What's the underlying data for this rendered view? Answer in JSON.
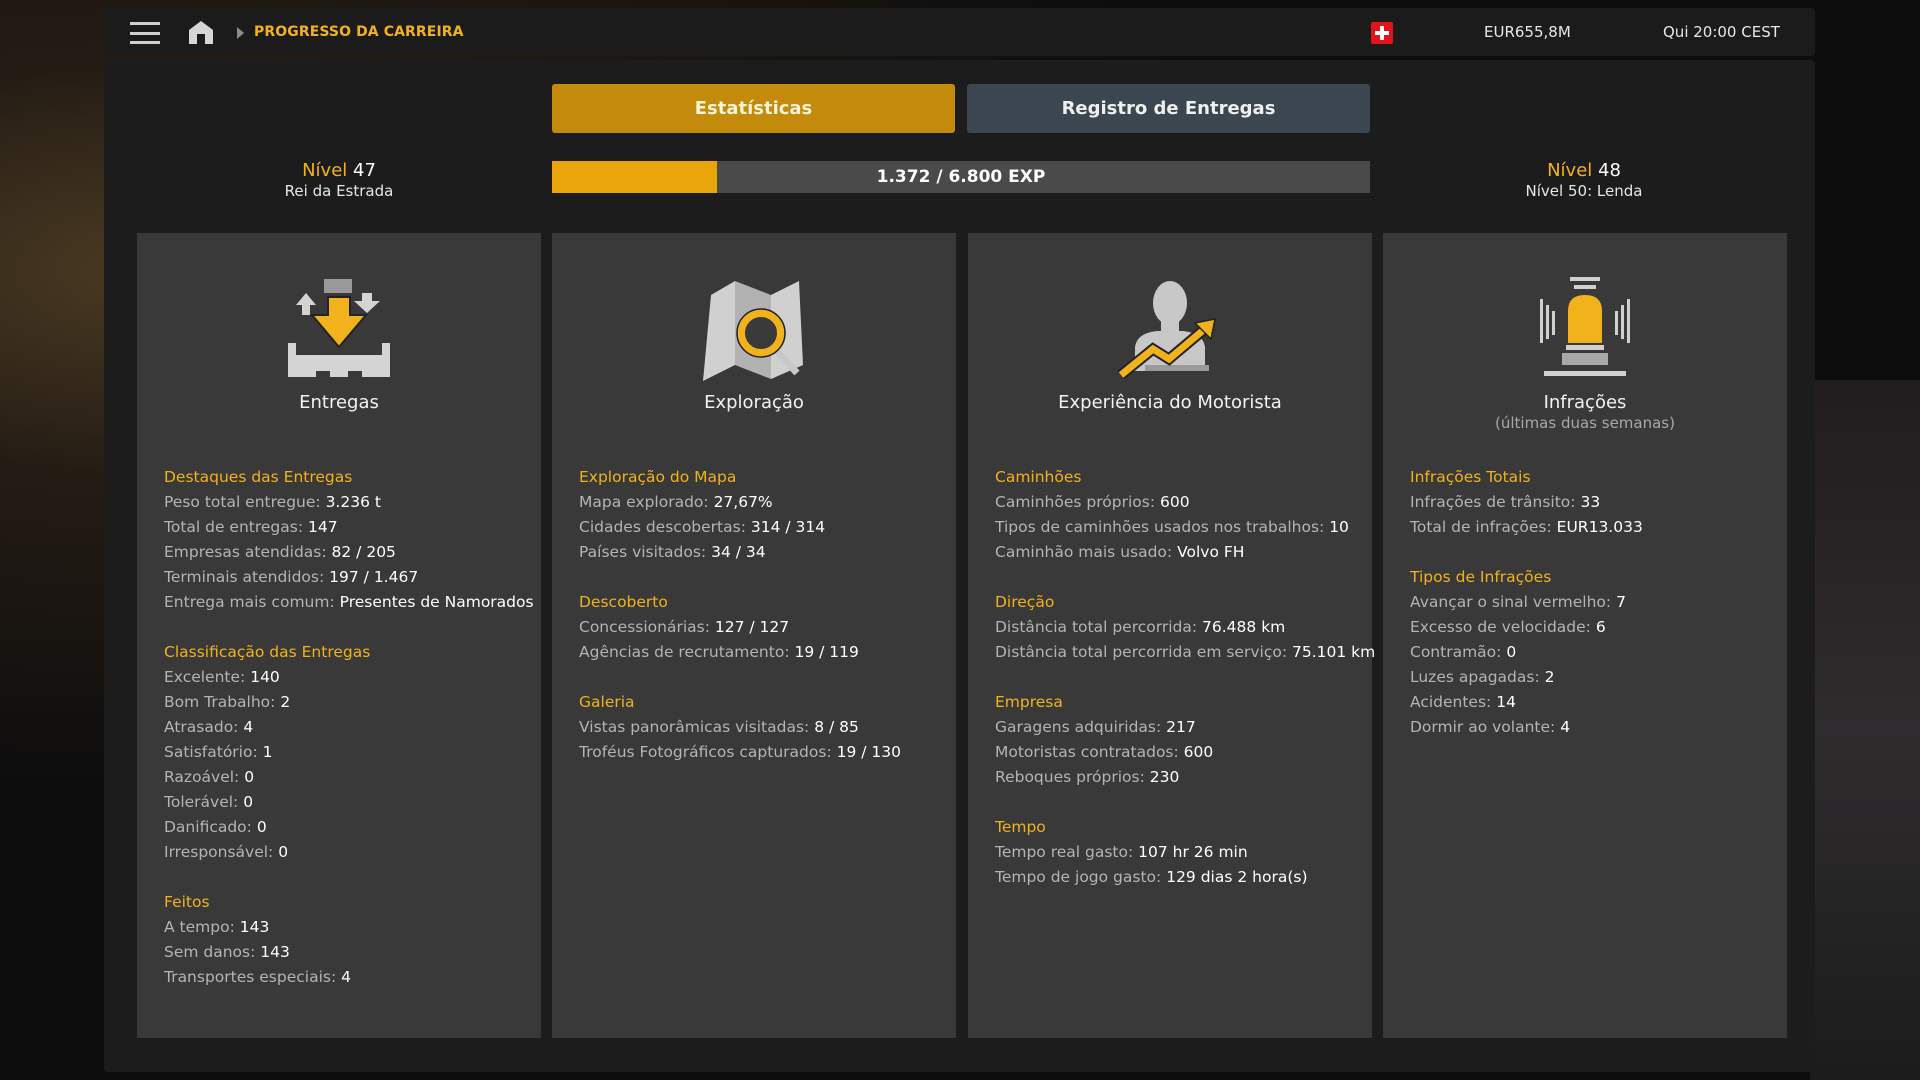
{
  "colors": {
    "accent": "#f2b21c",
    "tab_active": "#c48a0c",
    "tab_inactive": "#3b4650",
    "progress_fill": "#e9a50b",
    "card_bg": "#393939"
  },
  "topbar": {
    "menu_icon": "hamburger-menu-icon",
    "home_icon": "home-icon",
    "breadcrumb": "PROGRESSO DA CARREIRA",
    "flag_icon": "swiss-flag-icon",
    "money": "EUR655,8M",
    "clock": "Qui 20:00 CEST"
  },
  "tabs": [
    {
      "label": "Estatísticas",
      "active": true
    },
    {
      "label": "Registro de Entregas",
      "active": false
    }
  ],
  "level_current": {
    "label": "Nível",
    "number": "47",
    "rank": "Rei da Estrada"
  },
  "level_next": {
    "label": "Nível",
    "number": "48",
    "rank": "Nível 50: Lenda"
  },
  "progress": {
    "text": "1.372 / 6.800 EXP",
    "current": 1372,
    "max": 6800
  },
  "cards": [
    {
      "title": "Entregas",
      "icon": "delivery-icon",
      "sections": [
        {
          "heading": "Destaques das Entregas",
          "rows": [
            {
              "label": "Peso total entregue:",
              "value": "3.236 t"
            },
            {
              "label": "Total de entregas:",
              "value": "147"
            },
            {
              "label": "Empresas atendidas:",
              "value": "82 / 205"
            },
            {
              "label": "Terminais atendidos:",
              "value": "197 / 1.467"
            },
            {
              "label": "Entrega mais comum:",
              "value": "Presentes de Namorados"
            }
          ]
        },
        {
          "heading": "Classificação das Entregas",
          "rows": [
            {
              "label": "Excelente:",
              "value": "140"
            },
            {
              "label": "Bom Trabalho:",
              "value": "2"
            },
            {
              "label": "Atrasado:",
              "value": "4"
            },
            {
              "label": "Satisfatório:",
              "value": "1"
            },
            {
              "label": "Razoável:",
              "value": "0"
            },
            {
              "label": "Tolerável:",
              "value": "0"
            },
            {
              "label": "Danificado:",
              "value": "0"
            },
            {
              "label": "Irresponsável:",
              "value": "0"
            }
          ]
        },
        {
          "heading": "Feitos",
          "rows": [
            {
              "label": "A tempo:",
              "value": "143"
            },
            {
              "label": "Sem danos:",
              "value": "143"
            },
            {
              "label": "Transportes especiais:",
              "value": "4"
            }
          ]
        }
      ]
    },
    {
      "title": "Exploração",
      "icon": "map-search-icon",
      "sections": [
        {
          "heading": "Exploração do Mapa",
          "rows": [
            {
              "label": "Mapa explorado:",
              "value": "27,67%"
            },
            {
              "label": "Cidades descobertas:",
              "value": "314 / 314"
            },
            {
              "label": "Países visitados:",
              "value": "34 / 34"
            }
          ]
        },
        {
          "heading": "Descoberto",
          "rows": [
            {
              "label": "Concessionárias:",
              "value": "127 / 127"
            },
            {
              "label": "Agências de recrutamento:",
              "value": "19 / 119"
            }
          ]
        },
        {
          "heading": "Galeria",
          "rows": [
            {
              "label": "Vistas panorâmicas visitadas:",
              "value": "8 / 85"
            },
            {
              "label": "Troféus Fotográficos capturados:",
              "value": "19 / 130"
            }
          ]
        }
      ]
    },
    {
      "title": "Experiência do Motorista",
      "icon": "driver-growth-icon",
      "sections": [
        {
          "heading": "Caminhões",
          "rows": [
            {
              "label": "Caminhões próprios:",
              "value": "600"
            },
            {
              "label": "Tipos de caminhões usados nos trabalhos:",
              "value": "10"
            },
            {
              "label": "Caminhão mais usado:",
              "value": "Volvo FH"
            }
          ]
        },
        {
          "heading": "Direção",
          "rows": [
            {
              "label": "Distância total percorrida:",
              "value": "76.488 km"
            },
            {
              "label": "Distância total percorrida em serviço:",
              "value": "75.101 km"
            }
          ]
        },
        {
          "heading": "Empresa",
          "rows": [
            {
              "label": "Garagens adquiridas:",
              "value": "217"
            },
            {
              "label": "Motoristas contratados:",
              "value": "600"
            },
            {
              "label": "Reboques próprios:",
              "value": "230"
            }
          ]
        },
        {
          "heading": "Tempo",
          "rows": [
            {
              "label": "Tempo real gasto:",
              "value": "107 hr 26 min"
            },
            {
              "label": "Tempo de jogo gasto:",
              "value": "129 dias 2 hora(s)"
            }
          ]
        }
      ]
    },
    {
      "title": "Infrações",
      "subtitle": "(últimas duas semanas)",
      "icon": "siren-icon",
      "sections": [
        {
          "heading": "Infrações Totais",
          "rows": [
            {
              "label": "Infrações de trânsito:",
              "value": "33"
            },
            {
              "label": "Total de infrações:",
              "value": "EUR13.033"
            }
          ]
        },
        {
          "heading": "Tipos de Infrações",
          "rows": [
            {
              "label": "Avançar o sinal vermelho:",
              "value": "7"
            },
            {
              "label": "Excesso de velocidade:",
              "value": "6"
            },
            {
              "label": "Contramão:",
              "value": "0"
            },
            {
              "label": "Luzes apagadas:",
              "value": "2"
            },
            {
              "label": "Acidentes:",
              "value": "14"
            },
            {
              "label": "Dormir ao volante:",
              "value": "4"
            }
          ]
        }
      ]
    }
  ]
}
